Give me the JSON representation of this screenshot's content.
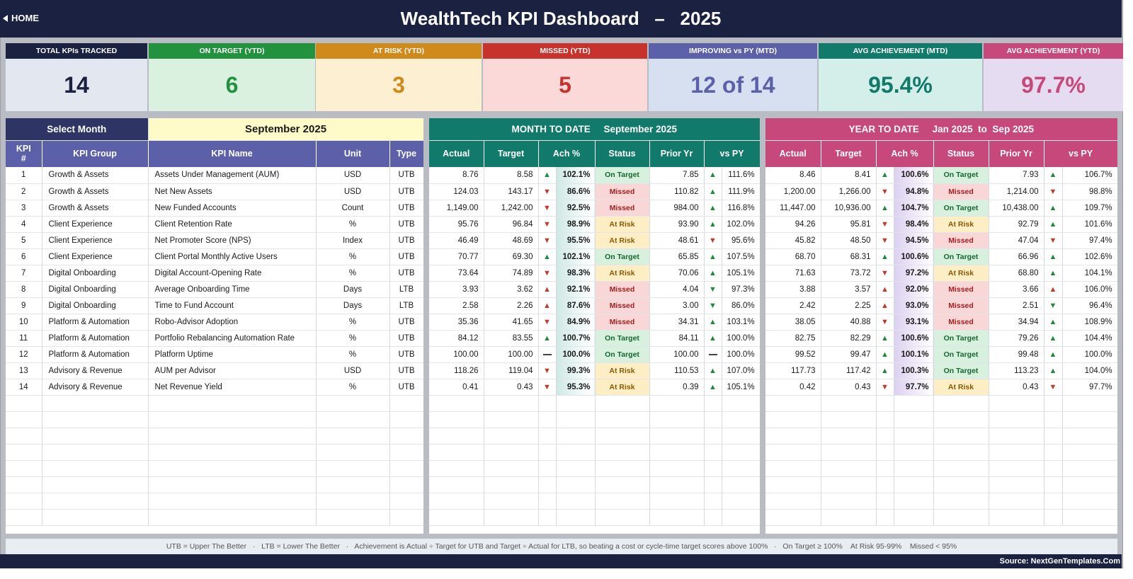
{
  "header": {
    "home_label": "HOME",
    "title": "WealthTech KPI Dashboard   –   2025"
  },
  "cards": [
    {
      "label": "TOTAL KPIs TRACKED",
      "value": "14",
      "head_color": "#1b2140",
      "body_color": "#e3e7ef",
      "value_color": "#1b2140"
    },
    {
      "label": "ON TARGET (YTD)",
      "value": "6",
      "head_color": "#22923f",
      "body_color": "#dbf1e0",
      "value_color": "#22923f"
    },
    {
      "label": "AT RISK (YTD)",
      "value": "3",
      "head_color": "#cf8a1b",
      "body_color": "#fdf0d2",
      "value_color": "#cf8a1b"
    },
    {
      "label": "MISSED (YTD)",
      "value": "5",
      "head_color": "#c8322c",
      "body_color": "#fad9d8",
      "value_color": "#c8322c"
    },
    {
      "label": "IMPROVING vs PY (MTD)",
      "value": "12 of 14",
      "head_color": "#5b60a8",
      "body_color": "#d6e0f0",
      "value_color": "#5b60a8"
    },
    {
      "label": "AVG ACHIEVEMENT (MTD)",
      "value": "95.4%",
      "head_color": "#117a6b",
      "body_color": "#d4eeea",
      "value_color": "#117a6b"
    },
    {
      "label": "AVG ACHIEVEMENT (YTD)",
      "value": "97.7%",
      "head_color": "#c7487a",
      "body_color": "#e6dcf1",
      "value_color": "#c7487a"
    }
  ],
  "left_panel": {
    "select_label": "Select Month",
    "selected_month": "September 2025",
    "columns": [
      "KPI\n#",
      "KPI Group",
      "KPI Name",
      "Unit",
      "Type"
    ]
  },
  "mtd_panel": {
    "heading": "MONTH TO DATE     September 2025",
    "columns": [
      "Actual",
      "Target",
      "Ach %",
      "Status",
      "Prior Yr",
      "vs PY"
    ]
  },
  "ytd_panel": {
    "heading": "YEAR TO DATE     Jan 2025  to  Sep 2025",
    "columns": [
      "Actual",
      "Target",
      "Ach %",
      "Status",
      "Prior Yr",
      "vs PY"
    ]
  },
  "rows": [
    {
      "n": "1",
      "group": "Growth & Assets",
      "name": "Assets Under Management (AUM)",
      "unit": "USD",
      "type": "UTB",
      "m": {
        "actual": "8.76",
        "target": "8.58",
        "arrow": "up",
        "ach": "102.1%",
        "status": "On Target",
        "prior": "7.85",
        "py_arrow": "up",
        "vspy": "111.6%"
      },
      "y": {
        "actual": "8.46",
        "target": "8.41",
        "arrow": "up",
        "ach": "100.6%",
        "status": "On Target",
        "prior": "7.93",
        "py_arrow": "up",
        "vspy": "106.7%"
      }
    },
    {
      "n": "2",
      "group": "Growth & Assets",
      "name": "Net New Assets",
      "unit": "USD",
      "type": "UTB",
      "m": {
        "actual": "124.03",
        "target": "143.17",
        "arrow": "down",
        "ach": "86.6%",
        "status": "Missed",
        "prior": "110.82",
        "py_arrow": "up",
        "vspy": "111.9%"
      },
      "y": {
        "actual": "1,200.00",
        "target": "1,266.00",
        "arrow": "down",
        "ach": "94.8%",
        "status": "Missed",
        "prior": "1,214.00",
        "py_arrow": "down",
        "vspy": "98.8%"
      }
    },
    {
      "n": "3",
      "group": "Growth & Assets",
      "name": "New Funded Accounts",
      "unit": "Count",
      "type": "UTB",
      "m": {
        "actual": "1,149.00",
        "target": "1,242.00",
        "arrow": "down",
        "ach": "92.5%",
        "status": "Missed",
        "prior": "984.00",
        "py_arrow": "up",
        "vspy": "116.8%"
      },
      "y": {
        "actual": "11,447.00",
        "target": "10,936.00",
        "arrow": "up",
        "ach": "104.7%",
        "status": "On Target",
        "prior": "10,438.00",
        "py_arrow": "up",
        "vspy": "109.7%"
      }
    },
    {
      "n": "4",
      "group": "Client Experience",
      "name": "Client Retention Rate",
      "unit": "%",
      "type": "UTB",
      "m": {
        "actual": "95.76",
        "target": "96.84",
        "arrow": "down",
        "ach": "98.9%",
        "status": "At Risk",
        "prior": "93.90",
        "py_arrow": "up",
        "vspy": "102.0%"
      },
      "y": {
        "actual": "94.26",
        "target": "95.81",
        "arrow": "down",
        "ach": "98.4%",
        "status": "At Risk",
        "prior": "92.79",
        "py_arrow": "up",
        "vspy": "101.6%"
      }
    },
    {
      "n": "5",
      "group": "Client Experience",
      "name": "Net Promoter Score (NPS)",
      "unit": "Index",
      "type": "UTB",
      "m": {
        "actual": "46.49",
        "target": "48.69",
        "arrow": "down",
        "ach": "95.5%",
        "status": "At Risk",
        "prior": "48.61",
        "py_arrow": "down",
        "vspy": "95.6%"
      },
      "y": {
        "actual": "45.82",
        "target": "48.50",
        "arrow": "down",
        "ach": "94.5%",
        "status": "Missed",
        "prior": "47.04",
        "py_arrow": "down",
        "vspy": "97.4%"
      }
    },
    {
      "n": "6",
      "group": "Client Experience",
      "name": "Client Portal Monthly Active Users",
      "unit": "%",
      "type": "UTB",
      "m": {
        "actual": "70.77",
        "target": "69.30",
        "arrow": "up",
        "ach": "102.1%",
        "status": "On Target",
        "prior": "65.85",
        "py_arrow": "up",
        "vspy": "107.5%"
      },
      "y": {
        "actual": "68.70",
        "target": "68.31",
        "arrow": "up",
        "ach": "100.6%",
        "status": "On Target",
        "prior": "66.96",
        "py_arrow": "up",
        "vspy": "102.6%"
      }
    },
    {
      "n": "7",
      "group": "Digital Onboarding",
      "name": "Digital Account-Opening Rate",
      "unit": "%",
      "type": "UTB",
      "m": {
        "actual": "73.64",
        "target": "74.89",
        "arrow": "down",
        "ach": "98.3%",
        "status": "At Risk",
        "prior": "70.06",
        "py_arrow": "up",
        "vspy": "105.1%"
      },
      "y": {
        "actual": "71.63",
        "target": "73.72",
        "arrow": "down",
        "ach": "97.2%",
        "status": "At Risk",
        "prior": "68.80",
        "py_arrow": "up",
        "vspy": "104.1%"
      }
    },
    {
      "n": "8",
      "group": "Digital Onboarding",
      "name": "Average Onboarding Time",
      "unit": "Days",
      "type": "LTB",
      "m": {
        "actual": "3.93",
        "target": "3.62",
        "arrow": "up-red",
        "ach": "92.1%",
        "status": "Missed",
        "prior": "4.04",
        "py_arrow": "down-green",
        "vspy": "97.3%"
      },
      "y": {
        "actual": "3.88",
        "target": "3.57",
        "arrow": "up-red",
        "ach": "92.0%",
        "status": "Missed",
        "prior": "3.66",
        "py_arrow": "up-red",
        "vspy": "106.0%"
      }
    },
    {
      "n": "9",
      "group": "Digital Onboarding",
      "name": "Time to Fund Account",
      "unit": "Days",
      "type": "LTB",
      "m": {
        "actual": "2.58",
        "target": "2.26",
        "arrow": "up-red",
        "ach": "87.6%",
        "status": "Missed",
        "prior": "3.00",
        "py_arrow": "down-green",
        "vspy": "86.0%"
      },
      "y": {
        "actual": "2.42",
        "target": "2.25",
        "arrow": "up-red",
        "ach": "93.0%",
        "status": "Missed",
        "prior": "2.51",
        "py_arrow": "down-green",
        "vspy": "96.4%"
      }
    },
    {
      "n": "10",
      "group": "Platform & Automation",
      "name": "Robo-Advisor Adoption",
      "unit": "%",
      "type": "UTB",
      "m": {
        "actual": "35.36",
        "target": "41.65",
        "arrow": "down",
        "ach": "84.9%",
        "status": "Missed",
        "prior": "34.31",
        "py_arrow": "up",
        "vspy": "103.1%"
      },
      "y": {
        "actual": "38.05",
        "target": "40.88",
        "arrow": "down",
        "ach": "93.1%",
        "status": "Missed",
        "prior": "34.94",
        "py_arrow": "up",
        "vspy": "108.9%"
      }
    },
    {
      "n": "11",
      "group": "Platform & Automation",
      "name": "Portfolio Rebalancing Automation Rate",
      "unit": "%",
      "type": "UTB",
      "m": {
        "actual": "84.12",
        "target": "83.55",
        "arrow": "up",
        "ach": "100.7%",
        "status": "On Target",
        "prior": "84.11",
        "py_arrow": "up",
        "vspy": "100.0%"
      },
      "y": {
        "actual": "82.75",
        "target": "82.29",
        "arrow": "up",
        "ach": "100.6%",
        "status": "On Target",
        "prior": "79.26",
        "py_arrow": "up",
        "vspy": "104.4%"
      }
    },
    {
      "n": "12",
      "group": "Platform & Automation",
      "name": "Platform Uptime",
      "unit": "%",
      "type": "UTB",
      "m": {
        "actual": "100.00",
        "target": "100.00",
        "arrow": "flat",
        "ach": "100.0%",
        "status": "On Target",
        "prior": "100.00",
        "py_arrow": "flat",
        "vspy": "100.0%"
      },
      "y": {
        "actual": "99.52",
        "target": "99.47",
        "arrow": "up",
        "ach": "100.1%",
        "status": "On Target",
        "prior": "99.48",
        "py_arrow": "up",
        "vspy": "100.0%"
      }
    },
    {
      "n": "13",
      "group": "Advisory & Revenue",
      "name": "AUM per Advisor",
      "unit": "USD",
      "type": "UTB",
      "m": {
        "actual": "118.26",
        "target": "119.04",
        "arrow": "down",
        "ach": "99.3%",
        "status": "At Risk",
        "prior": "110.53",
        "py_arrow": "up",
        "vspy": "107.0%"
      },
      "y": {
        "actual": "117.73",
        "target": "117.42",
        "arrow": "up",
        "ach": "100.3%",
        "status": "On Target",
        "prior": "113.23",
        "py_arrow": "up",
        "vspy": "104.0%"
      }
    },
    {
      "n": "14",
      "group": "Advisory & Revenue",
      "name": "Net Revenue Yield",
      "unit": "%",
      "type": "UTB",
      "m": {
        "actual": "0.41",
        "target": "0.43",
        "arrow": "down",
        "ach": "95.3%",
        "status": "At Risk",
        "prior": "0.39",
        "py_arrow": "up",
        "vspy": "105.1%"
      },
      "y": {
        "actual": "0.42",
        "target": "0.43",
        "arrow": "down",
        "ach": "97.7%",
        "status": "At Risk",
        "prior": "0.43",
        "py_arrow": "down",
        "vspy": "97.7%"
      }
    }
  ],
  "empty_rows": 8,
  "note": "UTB = Upper The Better   ·   LTB = Lower The Better   ·   Achievement is Actual ÷ Target for UTB and Target ÷ Actual for LTB, so beating a cost or cycle-time target scores above 100%   ·   On Target ≥ 100%    At Risk 95-99%    Missed < 95%",
  "source": "Source: NextGenTemplates.Com"
}
